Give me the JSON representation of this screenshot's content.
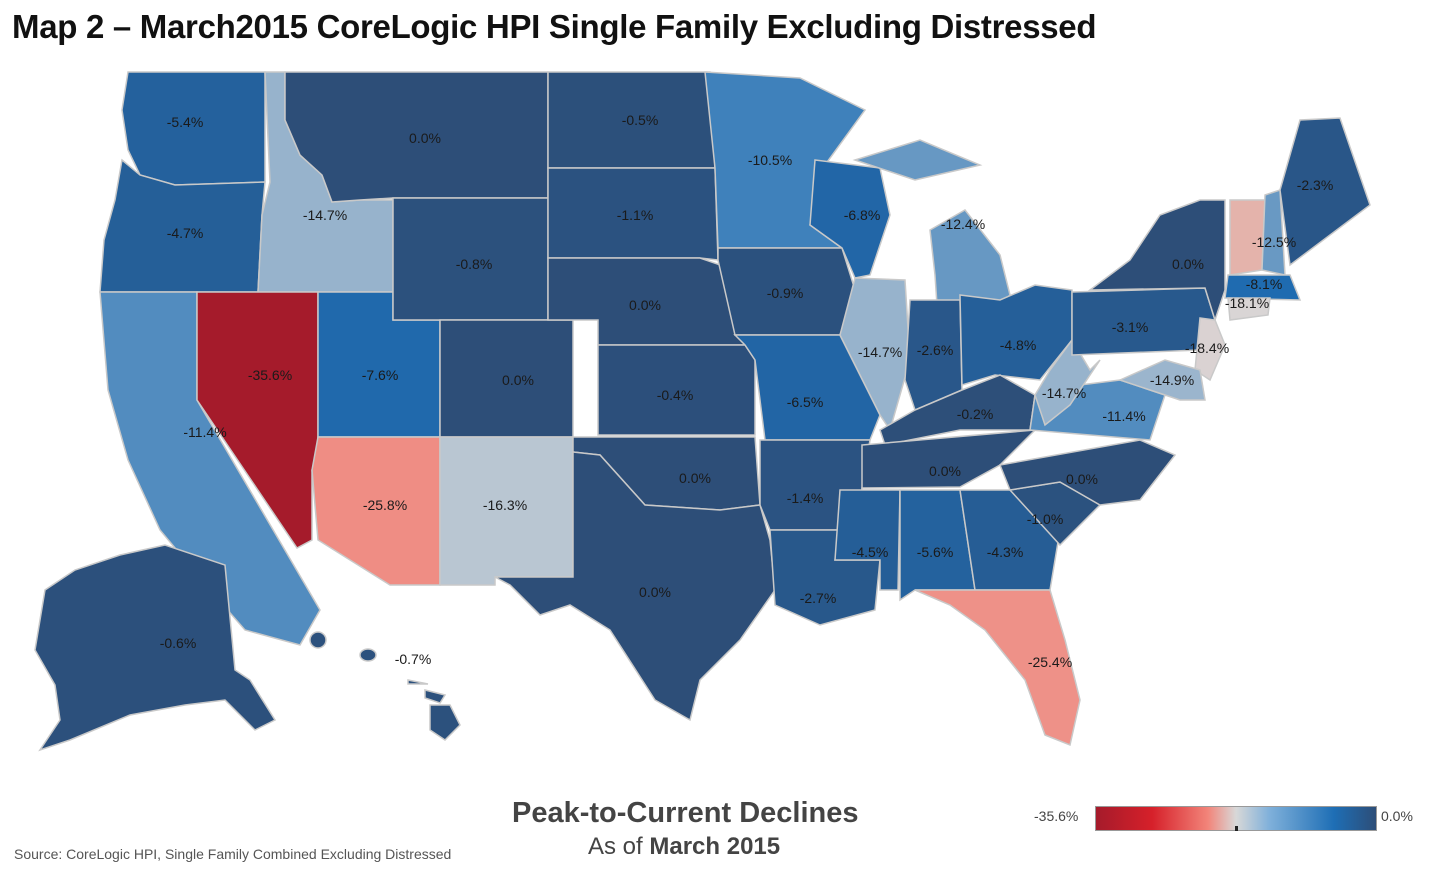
{
  "title": "Map 2 – March2015 CoreLogic HPI Single Family Excluding Distressed",
  "legend": {
    "title": "Peak-to-Current Declines",
    "subtitle_prefix": "As of ",
    "subtitle_date": "March 2015",
    "scale_min_label": "-35.6%",
    "scale_max_label": "0.0%"
  },
  "source": "Source: CoreLogic HPI, Single Family Combined Excluding Distressed",
  "chart_data": {
    "type": "choropleth",
    "title": "Map 2 – March2015 CoreLogic HPI Single Family Excluding Distressed",
    "metric": "Peak-to-Current Declines",
    "as_of": "March 2015",
    "scale": {
      "min": -35.6,
      "max": 0.0,
      "colors": [
        "#a51b2b",
        "#f2857a",
        "#d8d8d8",
        "#1e6eb5",
        "#2d4e78"
      ]
    },
    "states": [
      {
        "id": "WA",
        "label": "-5.4%",
        "value": -5.4
      },
      {
        "id": "OR",
        "label": "-4.7%",
        "value": -4.7
      },
      {
        "id": "CA",
        "label": "-11.4%",
        "value": -11.4
      },
      {
        "id": "ID",
        "label": "-14.7%",
        "value": -14.7
      },
      {
        "id": "NV",
        "label": "-35.6%",
        "value": -35.6
      },
      {
        "id": "UT",
        "label": "-7.6%",
        "value": -7.6
      },
      {
        "id": "AZ",
        "label": "-25.8%",
        "value": -25.8
      },
      {
        "id": "MT",
        "label": "0.0%",
        "value": 0.0
      },
      {
        "id": "WY",
        "label": "-0.8%",
        "value": -0.8
      },
      {
        "id": "CO",
        "label": "0.0%",
        "value": 0.0
      },
      {
        "id": "NM",
        "label": "-16.3%",
        "value": -16.3
      },
      {
        "id": "ND",
        "label": "-0.5%",
        "value": -0.5
      },
      {
        "id": "SD",
        "label": "-1.1%",
        "value": -1.1
      },
      {
        "id": "NE",
        "label": "0.0%",
        "value": 0.0
      },
      {
        "id": "KS",
        "label": "-0.4%",
        "value": -0.4
      },
      {
        "id": "OK",
        "label": "0.0%",
        "value": 0.0
      },
      {
        "id": "TX",
        "label": "0.0%",
        "value": 0.0
      },
      {
        "id": "MN",
        "label": "-10.5%",
        "value": -10.5
      },
      {
        "id": "IA",
        "label": "-0.9%",
        "value": -0.9
      },
      {
        "id": "MO",
        "label": "-6.5%",
        "value": -6.5
      },
      {
        "id": "AR",
        "label": "-1.4%",
        "value": -1.4
      },
      {
        "id": "LA",
        "label": "-2.7%",
        "value": -2.7
      },
      {
        "id": "WI",
        "label": "-6.8%",
        "value": -6.8
      },
      {
        "id": "IL",
        "label": "-14.7%",
        "value": -14.7
      },
      {
        "id": "MI",
        "label": "-12.4%",
        "value": -12.4
      },
      {
        "id": "IN",
        "label": "-2.6%",
        "value": -2.6
      },
      {
        "id": "OH",
        "label": "-4.8%",
        "value": -4.8
      },
      {
        "id": "KY",
        "label": "-0.2%",
        "value": -0.2
      },
      {
        "id": "TN",
        "label": "0.0%",
        "value": 0.0
      },
      {
        "id": "MS",
        "label": "-4.5%",
        "value": -4.5
      },
      {
        "id": "AL",
        "label": "-5.6%",
        "value": -5.6
      },
      {
        "id": "GA",
        "label": "-4.3%",
        "value": -4.3
      },
      {
        "id": "FL",
        "label": "-25.4%",
        "value": -25.4
      },
      {
        "id": "SC",
        "label": "-1.0%",
        "value": -1.0
      },
      {
        "id": "NC",
        "label": "0.0%",
        "value": 0.0
      },
      {
        "id": "VA",
        "label": "-11.4%",
        "value": -11.4
      },
      {
        "id": "WV",
        "label": "-14.7%",
        "value": -14.7
      },
      {
        "id": "PA",
        "label": "-3.1%",
        "value": -3.1
      },
      {
        "id": "NY",
        "label": "0.0%",
        "value": 0.0
      },
      {
        "id": "NJ",
        "label": "-18.4%",
        "value": -18.4
      },
      {
        "id": "MD",
        "label": "-14.9%",
        "value": -14.9
      },
      {
        "id": "VT",
        "label": "",
        "value": null
      },
      {
        "id": "NH",
        "label": "-12.5%",
        "value": -12.5
      },
      {
        "id": "ME",
        "label": "-2.3%",
        "value": -2.3
      },
      {
        "id": "MA",
        "label": "-8.1%",
        "value": -8.1
      },
      {
        "id": "CT",
        "label": "-18.1%",
        "value": -18.1
      },
      {
        "id": "AK",
        "label": "-0.6%",
        "value": -0.6
      },
      {
        "id": "HI",
        "label": "-0.7%",
        "value": -0.7
      }
    ]
  }
}
